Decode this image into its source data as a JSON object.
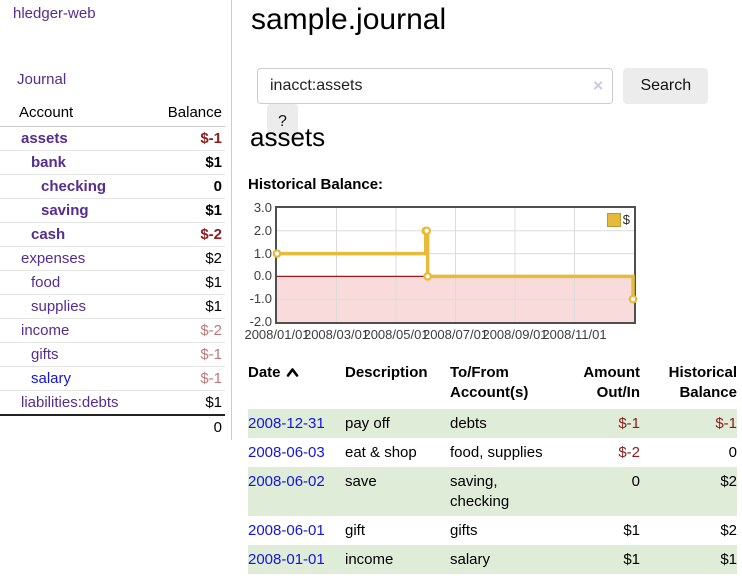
{
  "colors": {
    "accent_purple": "#552d90",
    "link_blue": "#1414dd",
    "negative_red": "#8d1c1c",
    "negative_faded": "#bd7878",
    "row_green": "#deecd8",
    "series_gold": "#e7ba3a",
    "negative_region_pink": "#f9dbdb",
    "zero_line_red": "#9e1a1a"
  },
  "sidebar": {
    "app_title": "hledger-web",
    "journal_label": "Journal",
    "accounts": {
      "header_account": "Account",
      "header_balance": "Balance",
      "rows": [
        {
          "name": "assets",
          "balance": "$-1",
          "indent": 1,
          "bold": true,
          "blue": false
        },
        {
          "name": "bank",
          "balance": "$1",
          "indent": 2,
          "bold": true,
          "blue": false
        },
        {
          "name": "checking",
          "balance": "0",
          "indent": 3,
          "bold": true,
          "blue": false
        },
        {
          "name": "saving",
          "balance": "$1",
          "indent": 3,
          "bold": true,
          "blue": false
        },
        {
          "name": "cash",
          "balance": "$-2",
          "indent": 2,
          "bold": true,
          "blue": false
        },
        {
          "name": "expenses",
          "balance": "$2",
          "indent": 1,
          "bold": false,
          "blue": false
        },
        {
          "name": "food",
          "balance": "$1",
          "indent": 2,
          "bold": false,
          "blue": false
        },
        {
          "name": "supplies",
          "balance": "$1",
          "indent": 2,
          "bold": false,
          "blue": false
        },
        {
          "name": "income",
          "balance": "$-2",
          "indent": 1,
          "bold": false,
          "blue": false
        },
        {
          "name": "gifts",
          "balance": "$-1",
          "indent": 2,
          "bold": false,
          "blue": false
        },
        {
          "name": "salary",
          "balance": "$-1",
          "indent": 2,
          "bold": false,
          "blue": true
        },
        {
          "name": "liabilities:debts",
          "balance": "$1",
          "indent": 1,
          "bold": false,
          "blue": false
        }
      ],
      "total": "0"
    }
  },
  "main": {
    "title": "sample.journal",
    "search": {
      "value": "inacct:assets",
      "clear_icon": "×",
      "search_label": "Search",
      "help_label": "?"
    },
    "account_heading": "assets",
    "chart_title": "Historical Balance:"
  },
  "chart_data": {
    "type": "line",
    "style": "step",
    "title": "Historical Balance",
    "xlabel": "",
    "ylabel": "",
    "ylim": [
      -2,
      3
    ],
    "grid": true,
    "legend_position": "top-right",
    "y_ticks": [
      "3.0",
      "2.0",
      "1.0",
      "0.0",
      "-1.0",
      "-2.0"
    ],
    "x_ticks": [
      "2008/01/01",
      "2008/03/01",
      "2008/05/01",
      "2008/07/01",
      "2008/09/01",
      "2008/11/01"
    ],
    "x_range": [
      "2008/01/01",
      "2008/12/31"
    ],
    "negative_region_below": 0,
    "series": [
      {
        "name": "$",
        "color": "#e7ba3a",
        "points": [
          {
            "date": "2008/01/01",
            "value": 1
          },
          {
            "date": "2008/06/01",
            "value": 2
          },
          {
            "date": "2008/06/02",
            "value": 2
          },
          {
            "date": "2008/06/03",
            "value": 0
          },
          {
            "date": "2008/12/31",
            "value": -1
          }
        ]
      }
    ]
  },
  "register": {
    "headers": {
      "date": "Date",
      "description": "Description",
      "accounts_line1": "To/From",
      "accounts_line2": "Account(s)",
      "amount_line1": "Amount",
      "amount_line2": "Out/In",
      "balance_line1": "Historical",
      "balance_line2": "Balance"
    },
    "rows": [
      {
        "date": "2008-12-31",
        "description": "pay off",
        "accounts": "debts",
        "amount": "$-1",
        "balance": "$-1"
      },
      {
        "date": "2008-06-03",
        "description": "eat & shop",
        "accounts": "food, supplies",
        "amount": "$-2",
        "balance": "0"
      },
      {
        "date": "2008-06-02",
        "description": "save",
        "accounts": "saving, checking",
        "amount": "0",
        "balance": "$2"
      },
      {
        "date": "2008-06-01",
        "description": "gift",
        "accounts": "gifts",
        "amount": "$1",
        "balance": "$2"
      },
      {
        "date": "2008-01-01",
        "description": "income",
        "accounts": "salary",
        "amount": "$1",
        "balance": "$1"
      }
    ]
  }
}
